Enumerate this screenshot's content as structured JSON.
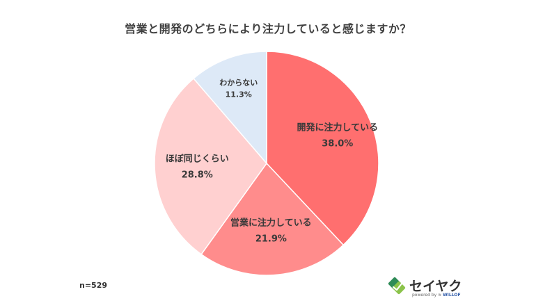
{
  "chart_data": {
    "type": "pie",
    "title": "営業と開発のどちらにより注力していると感じますか？",
    "categories": [
      "開発に注力している",
      "営業に注力している",
      "ほぼ同じくらい",
      "わからない"
    ],
    "values": [
      38.0,
      21.9,
      28.8,
      11.3
    ],
    "value_labels": [
      "38.0%",
      "21.9%",
      "28.8%",
      "11.3%"
    ],
    "colors": [
      "#ff6f6f",
      "#ff8c8c",
      "#ffd0d0",
      "#dde9f7"
    ],
    "start": "12 o'clock",
    "direction": "clockwise"
  },
  "footer": {
    "sample_size": "n=529"
  },
  "logo": {
    "name": "セイヤク",
    "powered_by": "powered by",
    "brand": "WILLOF",
    "mark_colors": [
      "#2e8b57",
      "#8bc34a"
    ]
  }
}
